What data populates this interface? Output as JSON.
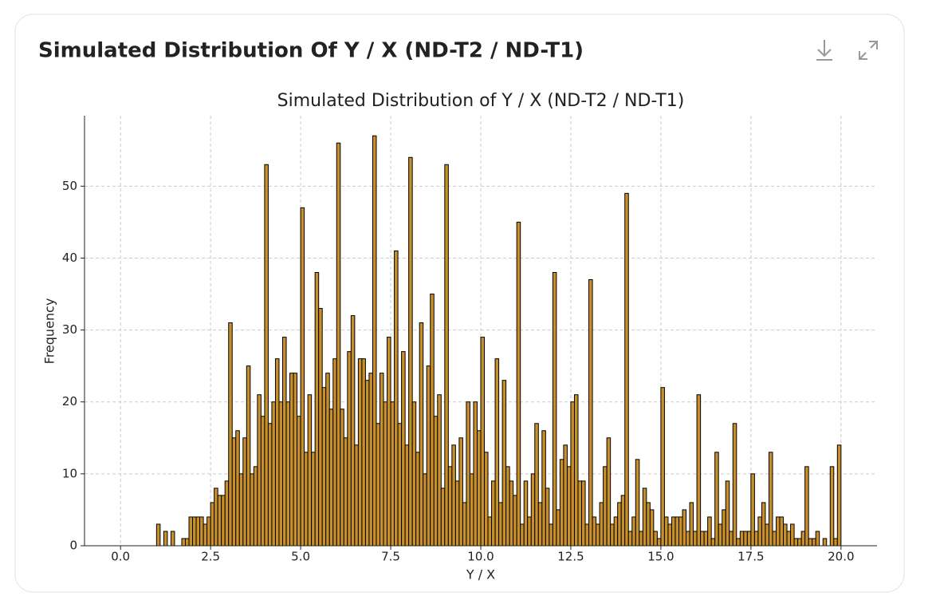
{
  "header": {
    "title": "Simulated Distribution Of Y / X (ND-T2 / ND-T1)"
  },
  "chart_data": {
    "type": "histogram",
    "title": "Simulated Distribution of Y / X (ND-T2 / ND-T1)",
    "x_label": "Y / X",
    "y_label": "Frequency",
    "color": "#c8902a",
    "edgecolor": "#000000",
    "grid": true,
    "xlim": [
      -1,
      21
    ],
    "ylim": [
      0,
      59.8
    ],
    "xticks": [
      {
        "value": 0,
        "label": "0.0"
      },
      2.5,
      {
        "value": 5,
        "label": "5.0"
      },
      7.5,
      {
        "value": 10,
        "label": "10.0"
      },
      12.5,
      {
        "value": 15,
        "label": "15.0"
      },
      17.5,
      {
        "value": 20,
        "label": "20.0"
      }
    ],
    "yticks": [
      0,
      10,
      20,
      30,
      40,
      50
    ],
    "bins": [
      1,
      1.1,
      1.2,
      1.3,
      1.4,
      1.5,
      1.6,
      1.7,
      1.8,
      1.9,
      2,
      2.1,
      2.2,
      2.3,
      2.4,
      2.5,
      2.6,
      2.7,
      2.8,
      2.9,
      3,
      3.1,
      3.2,
      3.3,
      3.4,
      3.5,
      3.6,
      3.7,
      3.8,
      3.9,
      4,
      4.1,
      4.2,
      4.3,
      4.4,
      4.5,
      4.6,
      4.7,
      4.8,
      4.9,
      5,
      5.1,
      5.2,
      5.3,
      5.4,
      5.5,
      5.6,
      5.7,
      5.8,
      5.9,
      6,
      6.1,
      6.2,
      6.3,
      6.4,
      6.5,
      6.6,
      6.7,
      6.8,
      6.9,
      7,
      7.1,
      7.2,
      7.3,
      7.4,
      7.5,
      7.6,
      7.7,
      7.8,
      7.9,
      8,
      8.1,
      8.2,
      8.3,
      8.4,
      8.5,
      8.6,
      8.7,
      8.8,
      8.9,
      9,
      9.1,
      9.2,
      9.3,
      9.4,
      9.5,
      9.6,
      9.7,
      9.8,
      9.9,
      10,
      10.1,
      10.2,
      10.3,
      10.4,
      10.5,
      10.6,
      10.7,
      10.8,
      10.9,
      11,
      11.1,
      11.2,
      11.3,
      11.4,
      11.5,
      11.6,
      11.7,
      11.8,
      11.9,
      12,
      12.1,
      12.2,
      12.3,
      12.4,
      12.5,
      12.6,
      12.7,
      12.8,
      12.9,
      13,
      13.1,
      13.2,
      13.3,
      13.4,
      13.5,
      13.6,
      13.7,
      13.8,
      13.9,
      14,
      14.1,
      14.2,
      14.3,
      14.4,
      14.5,
      14.6,
      14.7,
      14.8,
      14.9,
      15,
      15.1,
      15.2,
      15.3,
      15.4,
      15.5,
      15.6,
      15.7,
      15.8,
      15.9,
      16,
      16.1,
      16.2,
      16.3,
      16.4,
      16.5,
      16.6,
      16.7,
      16.8,
      16.9,
      17,
      17.1,
      17.2,
      17.3,
      17.4,
      17.5,
      17.6,
      17.7,
      17.8,
      17.9,
      18,
      18.1,
      18.2,
      18.3,
      18.4,
      18.5,
      18.6,
      18.7,
      18.8,
      18.9,
      19,
      19.1,
      19.2,
      19.3,
      19.4,
      19.5,
      19.6,
      19.7,
      19.8,
      19.9,
      20
    ],
    "values": [
      3,
      0,
      2,
      0,
      2,
      0,
      0,
      1,
      1,
      4,
      4,
      4,
      4,
      3,
      4,
      6,
      8,
      7,
      7,
      9,
      31,
      15,
      16,
      10,
      15,
      25,
      10,
      11,
      21,
      18,
      53,
      17,
      20,
      26,
      20,
      29,
      20,
      24,
      24,
      18,
      47,
      13,
      21,
      13,
      38,
      33,
      22,
      24,
      19,
      26,
      56,
      19,
      15,
      27,
      32,
      14,
      26,
      26,
      23,
      24,
      57,
      17,
      24,
      20,
      29,
      20,
      41,
      17,
      27,
      14,
      54,
      20,
      13,
      31,
      10,
      25,
      35,
      18,
      21,
      8,
      53,
      11,
      14,
      9,
      15,
      6,
      20,
      10,
      20,
      16,
      29,
      13,
      4,
      9,
      26,
      6,
      23,
      11,
      9,
      7,
      45,
      3,
      9,
      4,
      10,
      17,
      6,
      16,
      8,
      3,
      38,
      5,
      12,
      14,
      11,
      20,
      21,
      9,
      9,
      3,
      37,
      4,
      3,
      6,
      11,
      15,
      3,
      4,
      6,
      7,
      49,
      2,
      4,
      12,
      2,
      8,
      6,
      5,
      2,
      1,
      22,
      4,
      3,
      4,
      4,
      4,
      5,
      2,
      6,
      2,
      21,
      2,
      2,
      4,
      1,
      13,
      3,
      5,
      9,
      2,
      17,
      1,
      2,
      2,
      2,
      10,
      2,
      4,
      6,
      3,
      13,
      2,
      4,
      4,
      3,
      2,
      3,
      1,
      1,
      2,
      11,
      1,
      1,
      2,
      0,
      1,
      0,
      11,
      1,
      14
    ]
  }
}
